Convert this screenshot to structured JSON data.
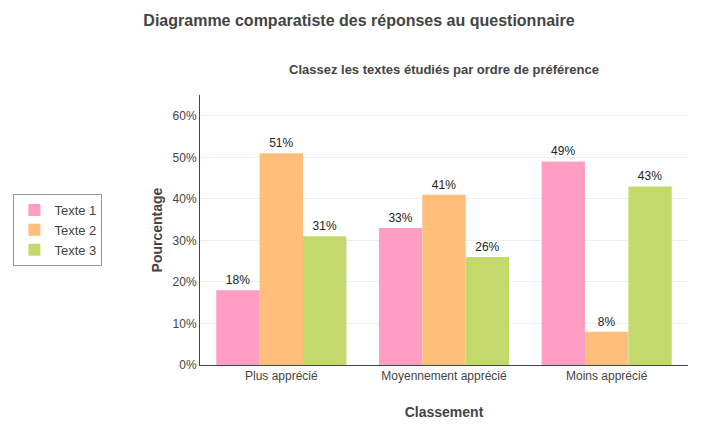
{
  "chart_data": {
    "type": "bar",
    "title": "Diagramme comparatiste des réponses au questionnaire",
    "subtitle": "Classez les textes étudiés par ordre de préférence",
    "categories": [
      "Plus apprécié",
      "Moyennement apprécié",
      "Moins apprécié"
    ],
    "series": [
      {
        "name": "Texte 1",
        "color": "#FF9EC4",
        "values": [
          18,
          33,
          49
        ],
        "value_labels": [
          "18%",
          "33%",
          "49%"
        ]
      },
      {
        "name": "Texte 2",
        "color": "#FFBE7A",
        "values": [
          51,
          41,
          8
        ],
        "value_labels": [
          "51%",
          "41%",
          "8%"
        ]
      },
      {
        "name": "Texte 3",
        "color": "#C3D96C",
        "values": [
          31,
          26,
          43
        ],
        "value_labels": [
          "31%",
          "26%",
          "43%"
        ]
      }
    ],
    "xlabel": "Classement",
    "ylabel": "Pourcentage",
    "ylim": [
      0,
      65
    ],
    "yticks": [
      {
        "value": 0,
        "label": "0%"
      },
      {
        "value": 10,
        "label": "10%"
      },
      {
        "value": 20,
        "label": "20%"
      },
      {
        "value": 30,
        "label": "30%"
      },
      {
        "value": 40,
        "label": "40%"
      },
      {
        "value": 50,
        "label": "50%"
      },
      {
        "value": 60,
        "label": "60%"
      }
    ],
    "grid": true,
    "legend": "left",
    "data_labels": true
  }
}
